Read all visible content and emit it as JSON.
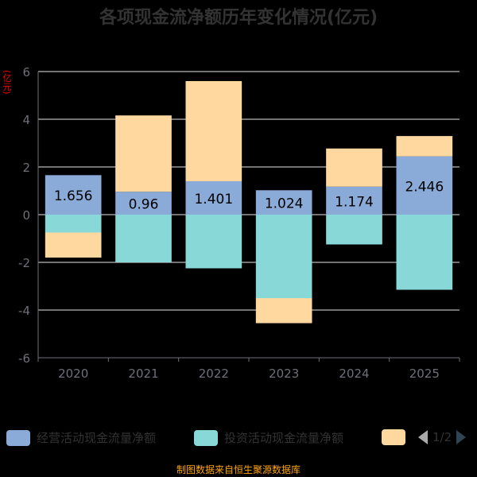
{
  "title": "各项现金流净额历年变化情况(亿元)",
  "y_unit": "(亿元)",
  "source": "制图数据来自恒生聚源数据库",
  "legend": {
    "pager": "1/2"
  },
  "colors": {
    "operating": "#8aaad8",
    "investing": "#88d8d8",
    "financing": "#ffd8a0",
    "grid": "#e6e6e6",
    "axis": "#6e7079"
  },
  "chart_data": {
    "type": "bar",
    "stacked": true,
    "categories": [
      "2020",
      "2021",
      "2022",
      "2023",
      "2024",
      "2025"
    ],
    "series": [
      {
        "name": "经营活动现金流量净额",
        "values": [
          1.656,
          0.96,
          1.401,
          1.024,
          1.174,
          2.446
        ]
      },
      {
        "name": "投资活动现金流量净额",
        "values": [
          -0.75,
          -2.0,
          -2.25,
          -3.5,
          -1.25,
          -3.15
        ]
      },
      {
        "name": "",
        "values": [
          -1.05,
          3.2,
          4.2,
          -1.05,
          1.6,
          0.85
        ]
      }
    ],
    "data_labels": [
      "1.656",
      "0.96",
      "1.401",
      "1.024",
      "1.174",
      "2.446"
    ],
    "ylim": [
      -6,
      6
    ],
    "yticks": [
      -6,
      -4,
      -2,
      0,
      2,
      4,
      6
    ],
    "grid": true,
    "legend_position": "bottom"
  }
}
